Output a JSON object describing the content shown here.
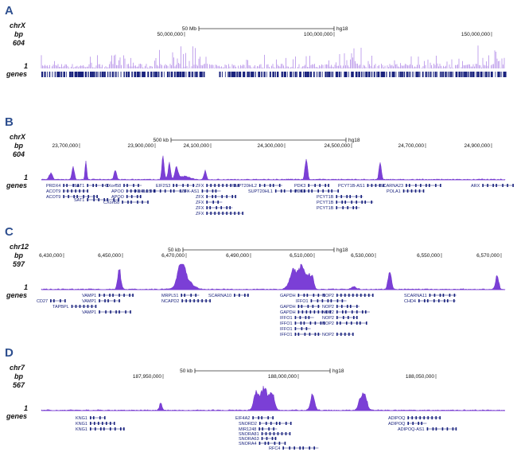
{
  "panels": [
    {
      "letter": "A",
      "chromosome": "chrX",
      "unit": "bp",
      "max": 604,
      "min": 1,
      "track": "genes",
      "scale": "50 Mb",
      "assembly": "hg18",
      "positions": [
        "50,000,000",
        "100,000,000",
        "150,000,000"
      ],
      "genes": []
    },
    {
      "letter": "B",
      "chromosome": "chrX",
      "unit": "bp",
      "max": 604,
      "min": 1,
      "track": "genes",
      "scale": "500 kb",
      "assembly": "hg18",
      "positions": [
        "23,700,000",
        "23,900,000",
        "24,100,000",
        "24,300,000",
        "24,500,000",
        "24,700,000",
        "24,900,000"
      ],
      "genes": [
        "PRDX4",
        "ACOT9",
        "ACOT9",
        "SAT1",
        "SAT1",
        "CXorf58",
        "APOO",
        "APOO",
        "CXorf58",
        "KLHL15",
        "EIF2S3",
        "ZFX",
        "ZFX-AS1",
        "ZFX",
        "ZFX",
        "ZFX",
        "ZFX",
        "SUPT20HL2",
        "SUPT20HL1",
        "PDK3",
        "PDK3",
        "PCYT1B-AS1",
        "PCYT1B",
        "PCYT1B",
        "PCYT1B",
        "SCARNA23",
        "POLA1",
        "ARX"
      ]
    },
    {
      "letter": "C",
      "chromosome": "chr12",
      "unit": "bp",
      "max": 597,
      "min": 1,
      "track": "genes",
      "scale": "50 kb",
      "assembly": "hg18",
      "positions": [
        "6,430,000",
        "6,450,000",
        "6,470,000",
        "6,490,000",
        "6,510,000",
        "6,530,000",
        "6,550,000",
        "6,570,000"
      ],
      "genes": [
        "CD27",
        "TAPBPL",
        "VAMP1",
        "VAMP1",
        "VAMP1",
        "MRPL51",
        "NCAPD2",
        "SCARNA10",
        "GAPDH",
        "IFFO1",
        "GAPDH",
        "GAPDH",
        "IFFO1",
        "IFFO1",
        "IFFO1",
        "IFFO1",
        "NOP2",
        "NOP2",
        "NOP2",
        "NOP2",
        "NOP2",
        "NOP2",
        "SCARNA11",
        "CHD4"
      ]
    },
    {
      "letter": "D",
      "chromosome": "chr7",
      "unit": "bp",
      "max": 567,
      "min": 1,
      "track": "genes",
      "scale": "50 kb",
      "assembly": "hg18",
      "positions": [
        "187,950,000",
        "188,000,000",
        "188,050,000"
      ],
      "genes": [
        "KNG1",
        "KNG1",
        "KNG1",
        "EIF4A2",
        "SNORD2",
        "MIR1248",
        "SNORA81",
        "SNORA63",
        "SNORA4",
        "RFC4",
        "RFC4",
        "ADIPOQ",
        "ADIPOQ",
        "ADIPOQ-AS1"
      ]
    }
  ]
}
